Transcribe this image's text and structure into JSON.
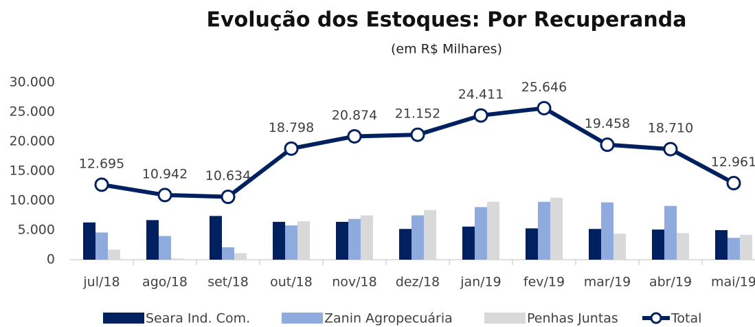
{
  "chart_data": {
    "type": "bar-line",
    "title": "Evolução dos Estoques: Por Recuperanda",
    "subtitle": "(em R$ Milhares)",
    "categories": [
      "jul/18",
      "ago/18",
      "set/18",
      "out/18",
      "nov/18",
      "dez/18",
      "jan/19",
      "fev/19",
      "mar/19",
      "abr/19",
      "mai/19"
    ],
    "series": [
      {
        "name": "Seara Ind. Com.",
        "type": "bar",
        "color": "#002060",
        "values": [
          6300,
          6700,
          7400,
          6400,
          6400,
          5200,
          5600,
          5300,
          5200,
          5100,
          5000
        ]
      },
      {
        "name": "Zanin Agropecuária",
        "type": "bar",
        "color": "#8faadc",
        "values": [
          4600,
          4000,
          2100,
          5800,
          6900,
          7500,
          8900,
          9800,
          9700,
          9100,
          3700
        ]
      },
      {
        "name": "Penhas Juntas",
        "type": "bar",
        "color": "#d9d9d9",
        "values": [
          1700,
          200,
          1100,
          6500,
          7500,
          8400,
          9800,
          10500,
          4400,
          4500,
          4200
        ]
      },
      {
        "name": "Total",
        "type": "line",
        "color": "#002060",
        "values": [
          12695,
          10942,
          10634,
          18798,
          20874,
          21152,
          24411,
          25646,
          19458,
          18710,
          12961
        ],
        "value_labels": [
          "12.695",
          "10.942",
          "10.634",
          "18.798",
          "20.874",
          "21.152",
          "24.411",
          "25.646",
          "19.458",
          "18.710",
          "12.961"
        ]
      }
    ],
    "ylim": [
      0,
      30000
    ],
    "yticks": [
      0,
      {
        "value": 5000,
        "label": "5.000"
      },
      {
        "value": 10000,
        "label": "10.000"
      },
      {
        "value": 15000,
        "label": "15.000"
      },
      {
        "value": 20000,
        "label": "20.000"
      },
      {
        "value": 25000,
        "label": "25.000"
      },
      {
        "value": 30000,
        "label": "30.000"
      }
    ],
    "grid": false
  }
}
